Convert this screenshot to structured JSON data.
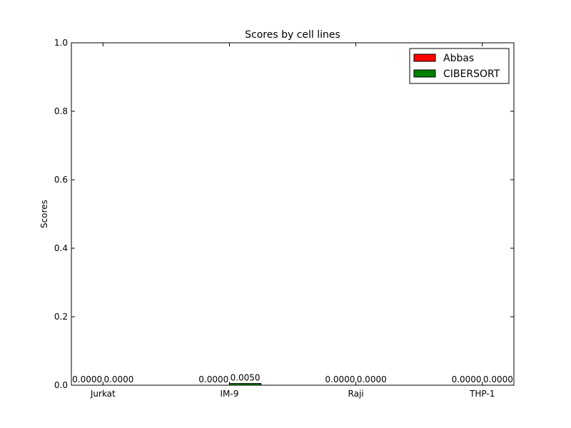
{
  "chart_data": {
    "type": "bar",
    "title": "Scores by cell lines",
    "xlabel": "",
    "ylabel": "Scores",
    "categories": [
      "Jurkat",
      "IM-9",
      "Raji",
      "THP-1"
    ],
    "series": [
      {
        "name": "Abbas",
        "color": "#ff0000",
        "values": [
          0.0,
          0.0,
          0.0,
          0.0
        ],
        "labels": [
          "0.0000",
          "0.0000",
          "0.0000",
          "0.0000"
        ]
      },
      {
        "name": "CIBERSORT",
        "color": "#008000",
        "values": [
          0.0,
          0.005,
          0.0,
          0.0
        ],
        "labels": [
          "0.0000",
          "0.0050",
          "0.0000",
          "0.0000"
        ]
      }
    ],
    "ylim": [
      0,
      1.0
    ],
    "yticks": [
      "0.0",
      "0.2",
      "0.4",
      "0.6",
      "0.8",
      "1.0"
    ],
    "legend_position": "top-right",
    "grid": false
  }
}
